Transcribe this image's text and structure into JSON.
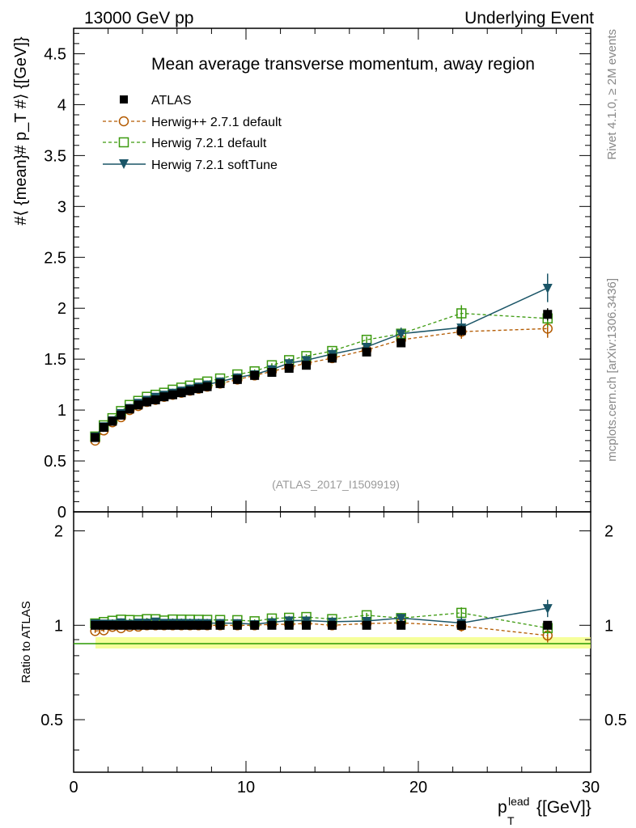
{
  "header": {
    "left": "13000 GeV pp",
    "right": "Underlying Event"
  },
  "side_labels": {
    "rivet": "Rivet 4.1.0, ≥ 2M events",
    "mcplots": "mcplots.cern.ch [arXiv:1306.3436]"
  },
  "chart_data": {
    "type": "scatter",
    "title": "Mean average transverse momentum, away region",
    "watermark": "(ATLAS_2017_I1509919)",
    "xlabel_main": "p",
    "xlabel_sup": "lead",
    "xlabel_sub": "T",
    "xlabel_unit": "{[GeV]}",
    "ylabel": "#⟨ {mean}# p_T #⟩ {[GeV]}",
    "ratio_ylabel": "Ratio to ATLAS",
    "xlim": [
      0,
      30
    ],
    "ylim": [
      0,
      4.75
    ],
    "ratio_ylim": [
      0.34,
      2.3
    ],
    "x_ticks": [
      "0",
      "10",
      "20",
      "30"
    ],
    "y_ticks": [
      "0",
      "0.5",
      "1",
      "1.5",
      "2",
      "2.5",
      "3",
      "3.5",
      "4",
      "4.5"
    ],
    "ratio_ticks": [
      "0.5",
      "1",
      "2"
    ],
    "x": [
      1.25,
      1.75,
      2.25,
      2.75,
      3.25,
      3.75,
      4.25,
      4.75,
      5.25,
      5.75,
      6.25,
      6.75,
      7.25,
      7.75,
      8.5,
      9.5,
      10.5,
      11.5,
      12.5,
      13.5,
      15.0,
      17.0,
      19.0,
      22.5,
      27.5
    ],
    "series": [
      {
        "name": "ATLAS",
        "color": "#000000",
        "marker": "square-filled",
        "line": "none",
        "values": [
          0.73,
          0.83,
          0.89,
          0.95,
          1.01,
          1.05,
          1.08,
          1.1,
          1.13,
          1.15,
          1.17,
          1.19,
          1.21,
          1.23,
          1.26,
          1.3,
          1.34,
          1.37,
          1.41,
          1.44,
          1.51,
          1.57,
          1.66,
          1.78,
          1.94
        ],
        "errors": [
          0.01,
          0.01,
          0.01,
          0.01,
          0.01,
          0.01,
          0.01,
          0.01,
          0.01,
          0.01,
          0.01,
          0.01,
          0.01,
          0.01,
          0.01,
          0.01,
          0.02,
          0.02,
          0.02,
          0.02,
          0.02,
          0.03,
          0.04,
          0.05,
          0.06
        ]
      },
      {
        "name": "Herwig++ 2.7.1 default",
        "color": "#b35a00",
        "marker": "circle-open",
        "line": "dashed",
        "values": [
          0.7,
          0.8,
          0.88,
          0.93,
          1.0,
          1.04,
          1.08,
          1.1,
          1.13,
          1.15,
          1.17,
          1.19,
          1.21,
          1.23,
          1.26,
          1.3,
          1.34,
          1.38,
          1.42,
          1.46,
          1.51,
          1.59,
          1.69,
          1.77,
          1.8
        ],
        "errors": [
          0.01,
          0.01,
          0.01,
          0.01,
          0.01,
          0.01,
          0.01,
          0.01,
          0.01,
          0.01,
          0.01,
          0.01,
          0.01,
          0.01,
          0.01,
          0.01,
          0.02,
          0.02,
          0.02,
          0.02,
          0.03,
          0.03,
          0.05,
          0.07,
          0.09
        ]
      },
      {
        "name": "Herwig 7.2.1 default",
        "color": "#3c9a0f",
        "marker": "square-open",
        "line": "dashed",
        "values": [
          0.74,
          0.85,
          0.92,
          0.99,
          1.05,
          1.09,
          1.13,
          1.15,
          1.17,
          1.2,
          1.22,
          1.24,
          1.26,
          1.28,
          1.31,
          1.35,
          1.38,
          1.44,
          1.49,
          1.53,
          1.58,
          1.69,
          1.75,
          1.95,
          1.9
        ],
        "errors": [
          0.01,
          0.01,
          0.01,
          0.01,
          0.01,
          0.01,
          0.01,
          0.01,
          0.01,
          0.01,
          0.01,
          0.01,
          0.01,
          0.01,
          0.01,
          0.01,
          0.02,
          0.02,
          0.02,
          0.02,
          0.03,
          0.03,
          0.05,
          0.08,
          0.08
        ]
      },
      {
        "name": "Herwig 7.2.1 softTune",
        "color": "#1a5567",
        "marker": "triangle-down-filled",
        "line": "solid",
        "values": [
          0.74,
          0.84,
          0.9,
          0.97,
          1.02,
          1.07,
          1.1,
          1.13,
          1.15,
          1.17,
          1.19,
          1.21,
          1.23,
          1.25,
          1.28,
          1.32,
          1.35,
          1.4,
          1.46,
          1.49,
          1.55,
          1.62,
          1.75,
          1.81,
          2.2
        ],
        "errors": [
          0.01,
          0.01,
          0.01,
          0.01,
          0.01,
          0.01,
          0.01,
          0.01,
          0.01,
          0.01,
          0.01,
          0.01,
          0.01,
          0.01,
          0.01,
          0.01,
          0.02,
          0.02,
          0.02,
          0.02,
          0.03,
          0.04,
          0.06,
          0.08,
          0.14
        ]
      }
    ]
  }
}
